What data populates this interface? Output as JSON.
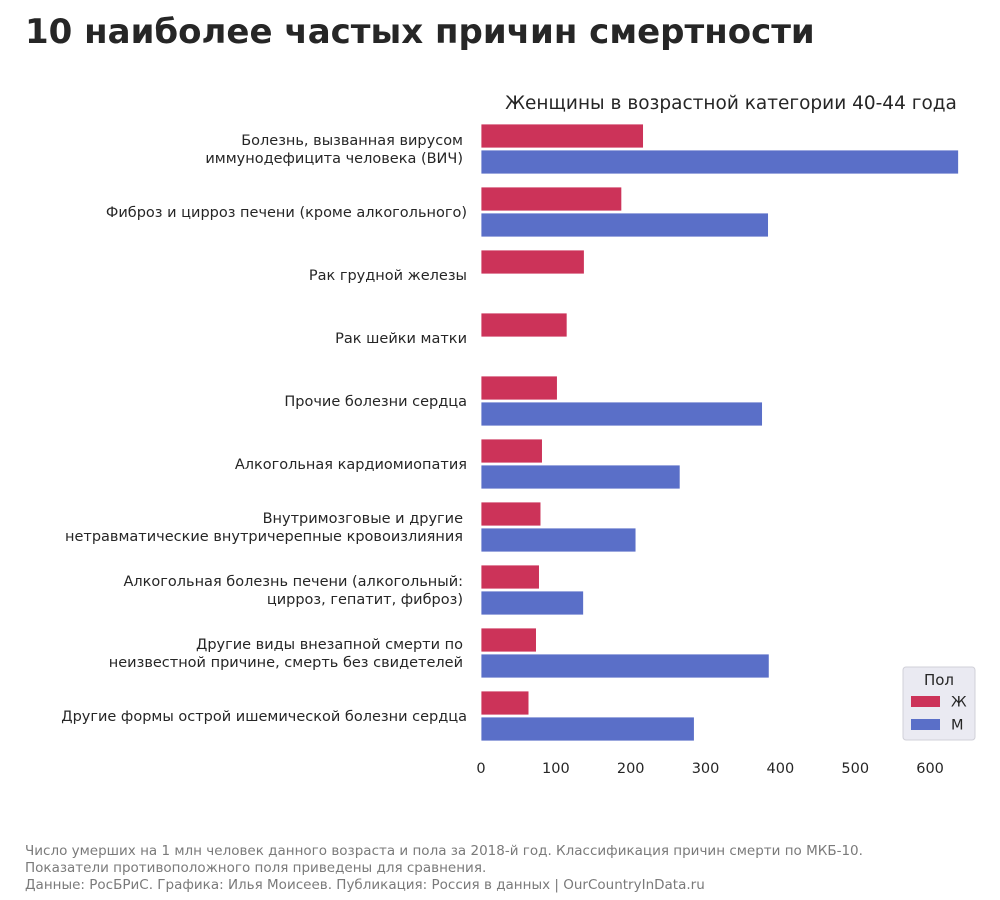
{
  "title": "10 наиболее частых причин смертности",
  "chart_data": {
    "type": "bar",
    "orientation": "horizontal",
    "title": "Женщины в возрастной категории 40-44 года",
    "categories": [
      [
        "Болезнь, вызванная вирусом",
        "иммунодефицита человека (ВИЧ)"
      ],
      [
        "Фиброз и цирроз печени (кроме алкогольного)"
      ],
      [
        "Рак грудной железы"
      ],
      [
        "Рак шейки матки"
      ],
      [
        "Прочие болезни сердца"
      ],
      [
        "Алкогольная кардиомиопатия"
      ],
      [
        "Внутримозговые и другие",
        "нетравматические внутричерепные кровоизлияния"
      ],
      [
        "Алкогольная болезнь печени (алкогольный:",
        "цирроз, гепатит, фиброз)"
      ],
      [
        "Другие виды внезапной смерти по",
        "неизвестной причине, смерть без свидетелей"
      ],
      [
        "Другие формы острой ишемической болезни сердца"
      ]
    ],
    "series": [
      {
        "name": "Ж",
        "color": "#cc3359",
        "values": [
          217,
          188,
          138,
          115,
          102,
          82,
          80,
          78,
          74,
          64
        ]
      },
      {
        "name": "М",
        "color": "#5a6fc8",
        "values": [
          638,
          384,
          null,
          null,
          376,
          266,
          207,
          137,
          385,
          285
        ]
      }
    ],
    "xlim": [
      0,
      660
    ],
    "xticks": [
      0,
      100,
      200,
      300,
      400,
      500,
      600
    ],
    "xlabel": "",
    "ylabel": "",
    "legend": {
      "title": "Пол",
      "position": "bottom-right"
    }
  },
  "footer": {
    "line1": "Число умерших на 1 млн человек данного возраста и пола за 2018-й год. Классификация причин смерти по МКБ-10.",
    "line2": "Показатели противоположного поля приведены для сравнения.",
    "line3": "Данные: РосБРиС. Графика: Илья Моисеев. Публикация: Россия в данных | OurCountryInData.ru"
  }
}
